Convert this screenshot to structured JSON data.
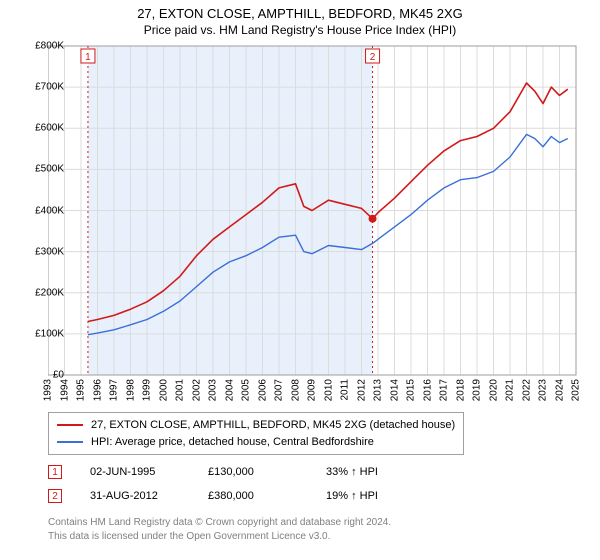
{
  "header": {
    "title": "27, EXTON CLOSE, AMPTHILL, BEDFORD, MK45 2XG",
    "subtitle": "Price paid vs. HM Land Registry's House Price Index (HPI)"
  },
  "chart": {
    "type": "line",
    "background_color": "#ffffff",
    "axis_color": "#9e9e9e",
    "grid_color": "#dcdcdc",
    "shade_color": "#e8f0fb",
    "x": {
      "domain_years": [
        1993,
        2025
      ],
      "ticks": [
        1993,
        1994,
        1995,
        1996,
        1997,
        1998,
        1999,
        2000,
        2001,
        2002,
        2003,
        2004,
        2005,
        2006,
        2007,
        2008,
        2009,
        2010,
        2011,
        2012,
        2013,
        2014,
        2015,
        2016,
        2017,
        2018,
        2019,
        2020,
        2021,
        2022,
        2023,
        2024,
        2025
      ]
    },
    "y": {
      "domain": [
        0,
        800000
      ],
      "tick_step": 100000,
      "ticks": [
        0,
        100000,
        200000,
        300000,
        400000,
        500000,
        600000,
        700000,
        800000
      ],
      "tick_labels": [
        "£0",
        "£100K",
        "£200K",
        "£300K",
        "£400K",
        "£500K",
        "£600K",
        "£700K",
        "£800K"
      ]
    },
    "series": [
      {
        "name": "27, EXTON CLOSE, AMPTHILL, BEDFORD, MK45 2XG (detached house)",
        "color": "#d21919",
        "width": 1.6,
        "x_years": [
          1995.42,
          1996,
          1997,
          1998,
          1999,
          2000,
          2001,
          2002,
          2003,
          2004,
          2005,
          2006,
          2007,
          2008,
          2008.5,
          2009,
          2010,
          2011,
          2012,
          2012.67,
          2013,
          2014,
          2015,
          2016,
          2017,
          2018,
          2019,
          2020,
          2021,
          2022,
          2022.5,
          2023,
          2023.5,
          2024,
          2024.5
        ],
        "values": [
          130000,
          135000,
          145000,
          160000,
          178000,
          205000,
          240000,
          290000,
          330000,
          360000,
          390000,
          420000,
          455000,
          465000,
          410000,
          400000,
          425000,
          415000,
          405000,
          380000,
          395000,
          430000,
          470000,
          510000,
          545000,
          570000,
          580000,
          600000,
          640000,
          710000,
          690000,
          660000,
          700000,
          680000,
          695000
        ]
      },
      {
        "name": "HPI: Average price, detached house, Central Bedfordshire",
        "color": "#3a6fd8",
        "width": 1.4,
        "x_years": [
          1995.42,
          1996,
          1997,
          1998,
          1999,
          2000,
          2001,
          2002,
          2003,
          2004,
          2005,
          2006,
          2007,
          2008,
          2008.5,
          2009,
          2010,
          2011,
          2012,
          2012.67,
          2013,
          2014,
          2015,
          2016,
          2017,
          2018,
          2019,
          2020,
          2021,
          2022,
          2022.5,
          2023,
          2023.5,
          2024,
          2024.5
        ],
        "values": [
          98000,
          102000,
          110000,
          122000,
          135000,
          155000,
          180000,
          215000,
          250000,
          275000,
          290000,
          310000,
          335000,
          340000,
          300000,
          295000,
          315000,
          310000,
          305000,
          320000,
          330000,
          360000,
          390000,
          425000,
          455000,
          475000,
          480000,
          495000,
          530000,
          585000,
          575000,
          555000,
          580000,
          565000,
          575000
        ]
      }
    ],
    "transactions": [
      {
        "idx": 1,
        "year": 1995.42,
        "value": 130000,
        "color": "#d21919"
      },
      {
        "idx": 2,
        "year": 2012.67,
        "value": 380000,
        "color": "#d21919"
      }
    ],
    "point_marker": {
      "at_year": 2012.67,
      "at_value": 380000,
      "color": "#d21919",
      "radius": 4
    }
  },
  "legend": {
    "items": [
      {
        "color": "#d21919",
        "label": "27, EXTON CLOSE, AMPTHILL, BEDFORD, MK45 2XG (detached house)"
      },
      {
        "color": "#3a6fd8",
        "label": "HPI: Average price, detached house, Central Bedfordshire"
      }
    ]
  },
  "tx_table": {
    "rows": [
      {
        "marker": "1",
        "marker_color": "#d21919",
        "date": "02-JUN-1995",
        "price": "£130,000",
        "delta": "33% ↑ HPI"
      },
      {
        "marker": "2",
        "marker_color": "#d21919",
        "date": "31-AUG-2012",
        "price": "£380,000",
        "delta": "19% ↑ HPI"
      }
    ]
  },
  "footnote": {
    "line1": "Contains HM Land Registry data © Crown copyright and database right 2024.",
    "line2": "This data is licensed under the Open Government Licence v3.0."
  }
}
